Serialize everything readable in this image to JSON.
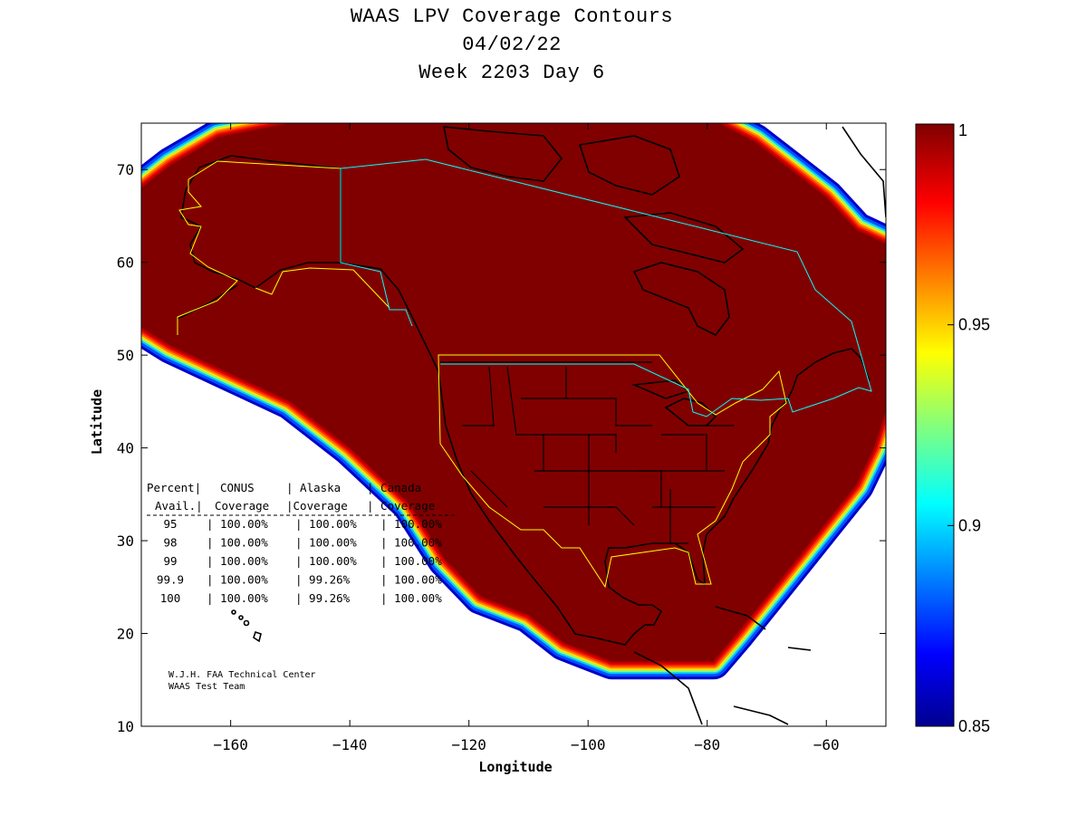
{
  "title": {
    "line1": "WAAS LPV Coverage Contours",
    "line2": "04/02/22",
    "line3": "Week 2203 Day 6"
  },
  "axes": {
    "xlabel": "Longitude",
    "ylabel": "Latitude",
    "xlim": [
      -175,
      -50
    ],
    "ylim": [
      10,
      75
    ],
    "xticks": [
      -160,
      -140,
      -120,
      -100,
      -80,
      -60
    ],
    "yticks": [
      10,
      20,
      30,
      40,
      50,
      60,
      70
    ]
  },
  "colorbar": {
    "min": 0.85,
    "max": 1,
    "ticks": [
      "1",
      "0.95",
      "0.9",
      "0.85"
    ],
    "tick_values": [
      1,
      0.95,
      0.9,
      0.85
    ],
    "colormap": "jet"
  },
  "coverage_table": {
    "header_row1": [
      "Percent|",
      "CONUS",
      "| Alaska",
      "| Canada"
    ],
    "header_row2": [
      "Avail.|",
      "Coverage",
      "|Coverage",
      "| Coverage"
    ],
    "rows": [
      {
        "percent": "95",
        "conus": "100.00%",
        "alaska": "100.00%",
        "canada": "100.00%"
      },
      {
        "percent": "98",
        "conus": "100.00%",
        "alaska": "100.00%",
        "canada": "100.00%"
      },
      {
        "percent": "99",
        "conus": "100.00%",
        "alaska": "100.00%",
        "canada": "100.00%"
      },
      {
        "percent": "99.9",
        "conus": "100.00%",
        "alaska": "99.26%",
        "canada": "100.00%"
      },
      {
        "percent": "100",
        "conus": "100.00%",
        "alaska": "99.26%",
        "canada": "100.00%"
      }
    ]
  },
  "credit": {
    "line1": "W.J.H. FAA Technical Center",
    "line2": "WAAS Test Team"
  },
  "colors": {
    "full_coverage": "#800000",
    "conus_boundary": "#ffff00",
    "canada_boundary": "#00ffff",
    "frame": "#000000"
  },
  "coverage_region": [
    [
      -175,
      68
    ],
    [
      -170,
      70.5
    ],
    [
      -162,
      73.5
    ],
    [
      -150,
      75
    ],
    [
      -92,
      75
    ],
    [
      -78,
      75
    ],
    [
      -72,
      73
    ],
    [
      -66,
      70
    ],
    [
      -60,
      67
    ],
    [
      -55,
      63.5
    ],
    [
      -50,
      62
    ],
    [
      -50,
      44
    ],
    [
      -52,
      40
    ],
    [
      -55,
      36
    ],
    [
      -60,
      32
    ],
    [
      -65,
      28
    ],
    [
      -70,
      24
    ],
    [
      -75,
      20
    ],
    [
      -79,
      17
    ],
    [
      -96,
      17
    ],
    [
      -104,
      19
    ],
    [
      -110,
      22
    ],
    [
      -118,
      24
    ],
    [
      -124,
      28
    ],
    [
      -130,
      34
    ],
    [
      -140,
      40
    ],
    [
      -150,
      45
    ],
    [
      -160,
      48
    ],
    [
      -170,
      51
    ],
    [
      -175,
      53
    ]
  ]
}
